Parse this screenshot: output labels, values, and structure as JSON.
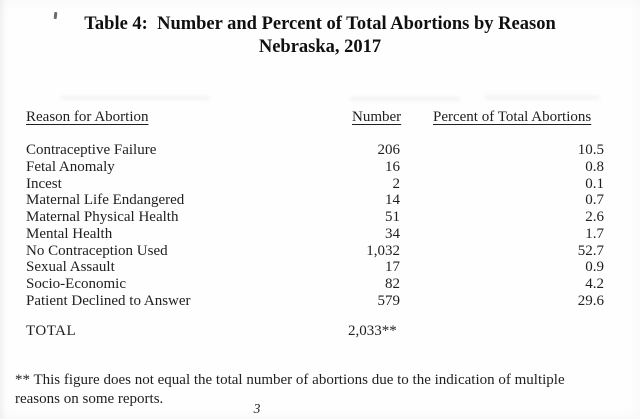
{
  "title": {
    "line1": "Table 4:  Number and Percent of Total Abortions by Reason",
    "line2": "Nebraska, 2017"
  },
  "columns": {
    "reason": "Reason for Abortion",
    "number": "Number",
    "percent": "Percent of Total Abortions"
  },
  "rows": [
    {
      "reason": "Contraceptive Failure",
      "number": "206",
      "percent": "10.5"
    },
    {
      "reason": "Fetal Anomaly",
      "number": "16",
      "percent": "0.8"
    },
    {
      "reason": "Incest",
      "number": "2",
      "percent": "0.1"
    },
    {
      "reason": "Maternal Life Endangered",
      "number": "14",
      "percent": "0.7"
    },
    {
      "reason": "Maternal Physical Health",
      "number": "51",
      "percent": "2.6"
    },
    {
      "reason": "Mental Health",
      "number": "34",
      "percent": "1.7"
    },
    {
      "reason": "No Contraception Used",
      "number": "1,032",
      "percent": "52.7"
    },
    {
      "reason": "Sexual Assault",
      "number": "17",
      "percent": "0.9"
    },
    {
      "reason": "Socio-Economic",
      "number": "82",
      "percent": "4.2"
    },
    {
      "reason": "Patient Declined to Answer",
      "number": "579",
      "percent": "29.6"
    }
  ],
  "total": {
    "label": "TOTAL",
    "value": "2,033**"
  },
  "footnote": {
    "line1": "** This figure does not equal the total number of abortions due to the indication of multiple",
    "line2": "reasons on some reports."
  },
  "page_number": "3",
  "colors": {
    "background": "#fefefe",
    "text": "#1f1f1f",
    "title": "#101010"
  }
}
